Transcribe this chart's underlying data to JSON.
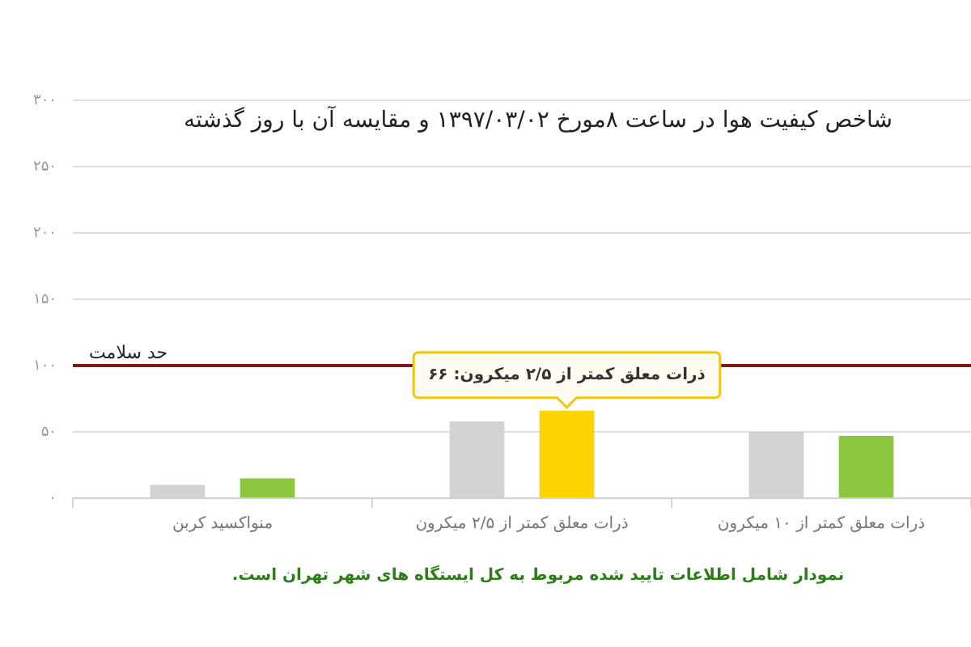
{
  "chart_data": {
    "type": "bar",
    "title": "شاخص کیفیت هوا در ساعت ۸مورخ ۱۳۹۷/۰۳/۰۲ و مقایسه آن با روز گذشته",
    "categories": [
      "منواکسید کربن",
      "ذرات معلق کمتر از ۲/۵ میکرون",
      "ذرات معلق کمتر از ۱۰ میکرون"
    ],
    "series": [
      {
        "color": "#d3d3d3",
        "values": [
          10,
          58,
          50
        ]
      },
      {
        "colors": [
          "#8dc63f",
          "#ffd400",
          "#8dc63f"
        ],
        "values": [
          15,
          66,
          47
        ],
        "value_labels": [
          null,
          "ذرات معلق کمتر از ۲/۵ میکرون: ۶۶",
          null
        ]
      }
    ],
    "ylim": [
      0,
      300
    ],
    "yticks": [
      {
        "value": 0,
        "label": "۰"
      },
      {
        "value": 50,
        "label": "۵۰"
      },
      {
        "value": 100,
        "label": "۱۰۰"
      },
      {
        "value": 150,
        "label": "۱۵۰"
      },
      {
        "value": 200,
        "label": "۲۰۰"
      },
      {
        "value": 250,
        "label": "۲۵۰"
      },
      {
        "value": 300,
        "label": "۳۰۰"
      }
    ],
    "grid": "y",
    "ref_lines": [
      {
        "axis": "y",
        "value": 100,
        "label": "حد سلامت",
        "color": "#7a1a1d"
      }
    ],
    "annotations": [
      "نمودار شامل اطلاعات تایید شده مربوط به کل ایستگاه های شهر تهران است."
    ]
  }
}
